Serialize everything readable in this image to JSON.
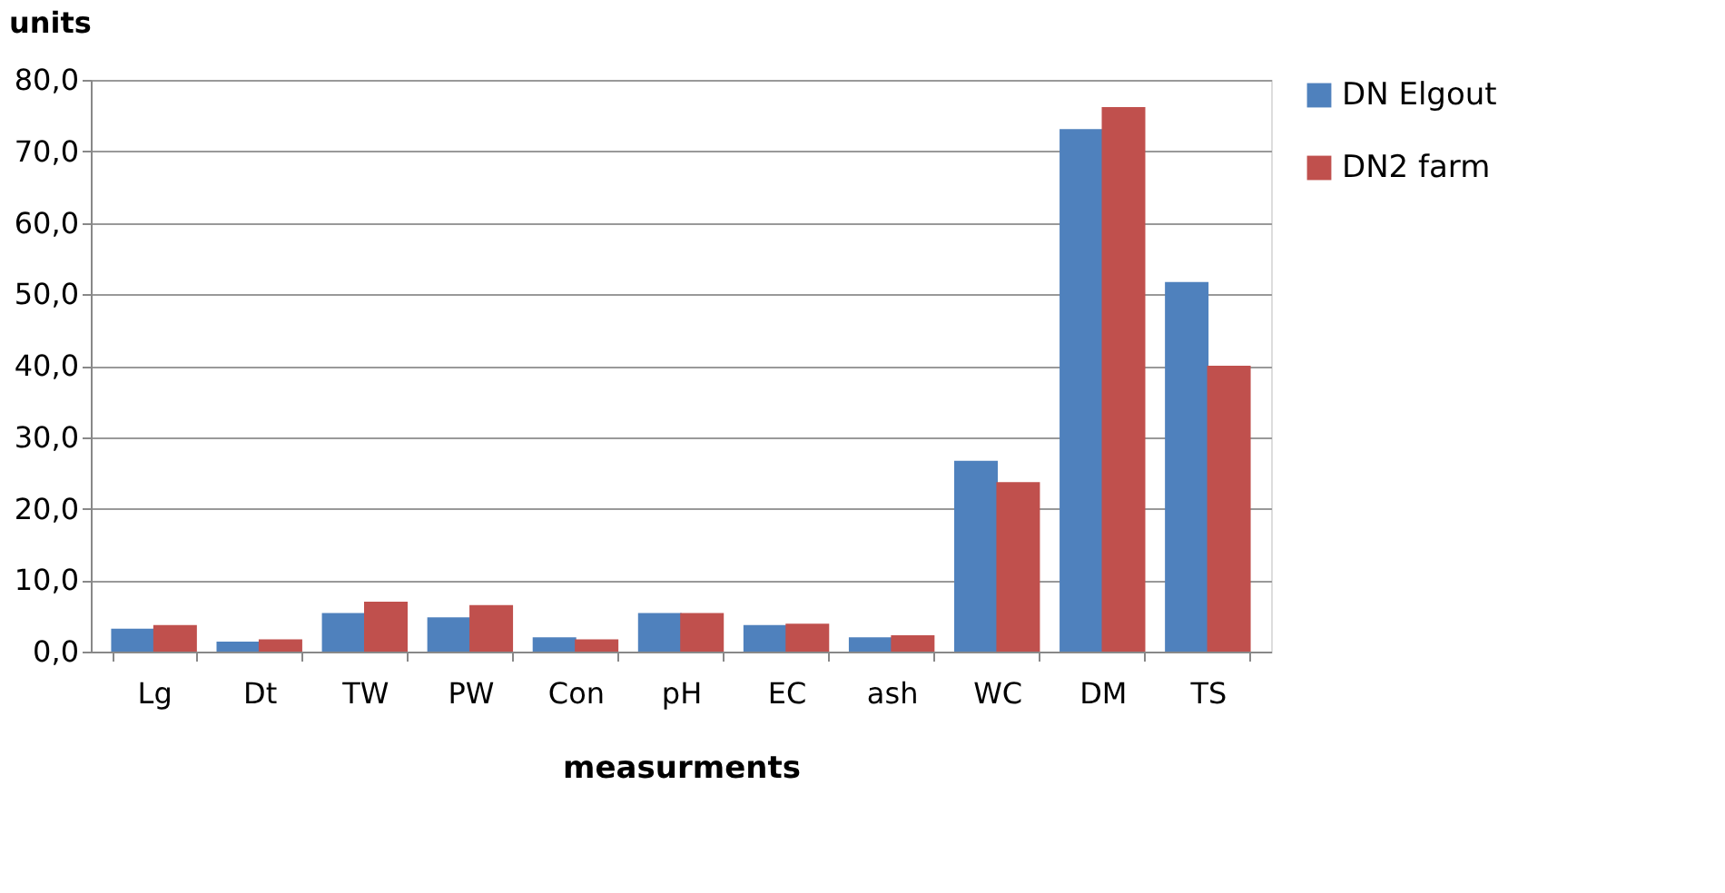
{
  "chart_data": {
    "type": "bar",
    "ylabel": "units",
    "xlabel": "measurments",
    "categories": [
      "Lg",
      "Dt",
      "TW",
      "PW",
      "Con",
      "pH",
      "EC",
      "ash",
      "WC",
      "DM",
      "TS"
    ],
    "series": [
      {
        "name": "DN Elgout",
        "color": "#4f81bd",
        "values": [
          3.2,
          1.4,
          5.4,
          4.8,
          2.0,
          5.4,
          3.7,
          2.0,
          26.7,
          73.1,
          51.7
        ]
      },
      {
        "name": "DN2 farm",
        "color": "#c0504d",
        "values": [
          3.7,
          1.7,
          7.0,
          6.5,
          1.7,
          5.4,
          3.9,
          2.3,
          23.7,
          76.2,
          40.0
        ]
      }
    ],
    "ylim": [
      0,
      80
    ],
    "yticks": [
      {
        "value": 0,
        "label": "0,0"
      },
      {
        "value": 10,
        "label": "10,0"
      },
      {
        "value": 20,
        "label": "20,0"
      },
      {
        "value": 30,
        "label": "30,0"
      },
      {
        "value": 40,
        "label": "40,0"
      },
      {
        "value": 50,
        "label": "50,0"
      },
      {
        "value": 60,
        "label": "60,0"
      },
      {
        "value": 70,
        "label": "70,0"
      },
      {
        "value": 80,
        "label": "80,0"
      }
    ],
    "grid": "y",
    "legend": "right"
  }
}
